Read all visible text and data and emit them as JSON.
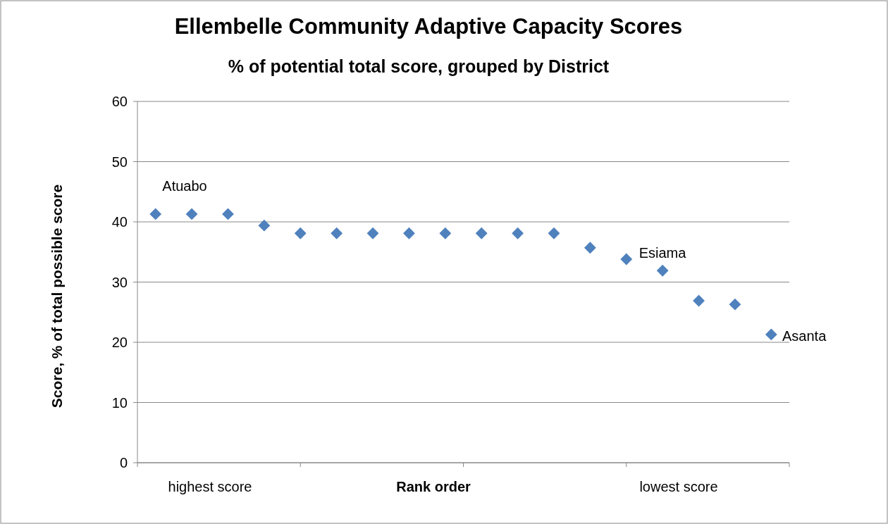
{
  "chart_data": {
    "type": "scatter",
    "title": "Ellembelle Community Adaptive Capacity  Scores",
    "subtitle": "% of potential total score, grouped by District",
    "xlabel": "Rank  order",
    "ylabel": "Score, % of total possible score",
    "categories": [
      null,
      null,
      null,
      null,
      null,
      null,
      null,
      null,
      null,
      null,
      null,
      null,
      null,
      null,
      null,
      null,
      null,
      null
    ],
    "series": [
      {
        "color": "#4f81bd",
        "values": [
          41.3,
          41.3,
          41.3,
          39.4,
          38.1,
          38.1,
          38.1,
          38.1,
          38.1,
          38.1,
          38.1,
          38.1,
          35.7,
          33.8,
          31.9,
          26.9,
          26.3,
          21.3
        ]
      }
    ],
    "ylim": [
      0,
      60
    ],
    "yticks": [
      0,
      10,
      20,
      30,
      40,
      50,
      60
    ],
    "grid": "y",
    "marker": "diamond",
    "annotations": [
      "Atuabo",
      "Esiama",
      "Asanta",
      "highest score",
      "lowest score"
    ]
  }
}
